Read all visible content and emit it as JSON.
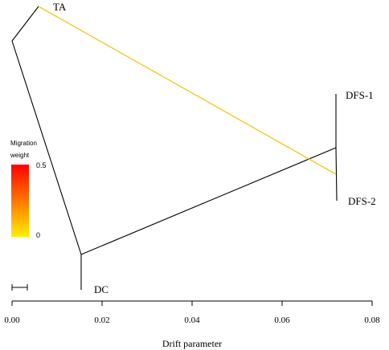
{
  "tree": {
    "tips": [
      {
        "id": "TA",
        "label": "TA"
      },
      {
        "id": "DFS-1",
        "label": "DFS-1"
      },
      {
        "id": "DFS-2",
        "label": "DFS-2"
      },
      {
        "id": "DC",
        "label": "DC"
      }
    ],
    "branch_color": "#000000"
  },
  "migration": {
    "from": "TA",
    "to": "DFS-2 branch",
    "weight_color": "#f5c518"
  },
  "legend": {
    "title_line1": "Migration",
    "title_line2": "weight",
    "max_label": "0.5",
    "min_label": "0",
    "color_high": "#ff0000",
    "color_low": "#ffee00"
  },
  "axis": {
    "title": "Drift parameter",
    "min": 0,
    "max": 0.08,
    "ticks": [
      "0.00",
      "0.02",
      "0.04",
      "0.06",
      "0.08"
    ]
  }
}
